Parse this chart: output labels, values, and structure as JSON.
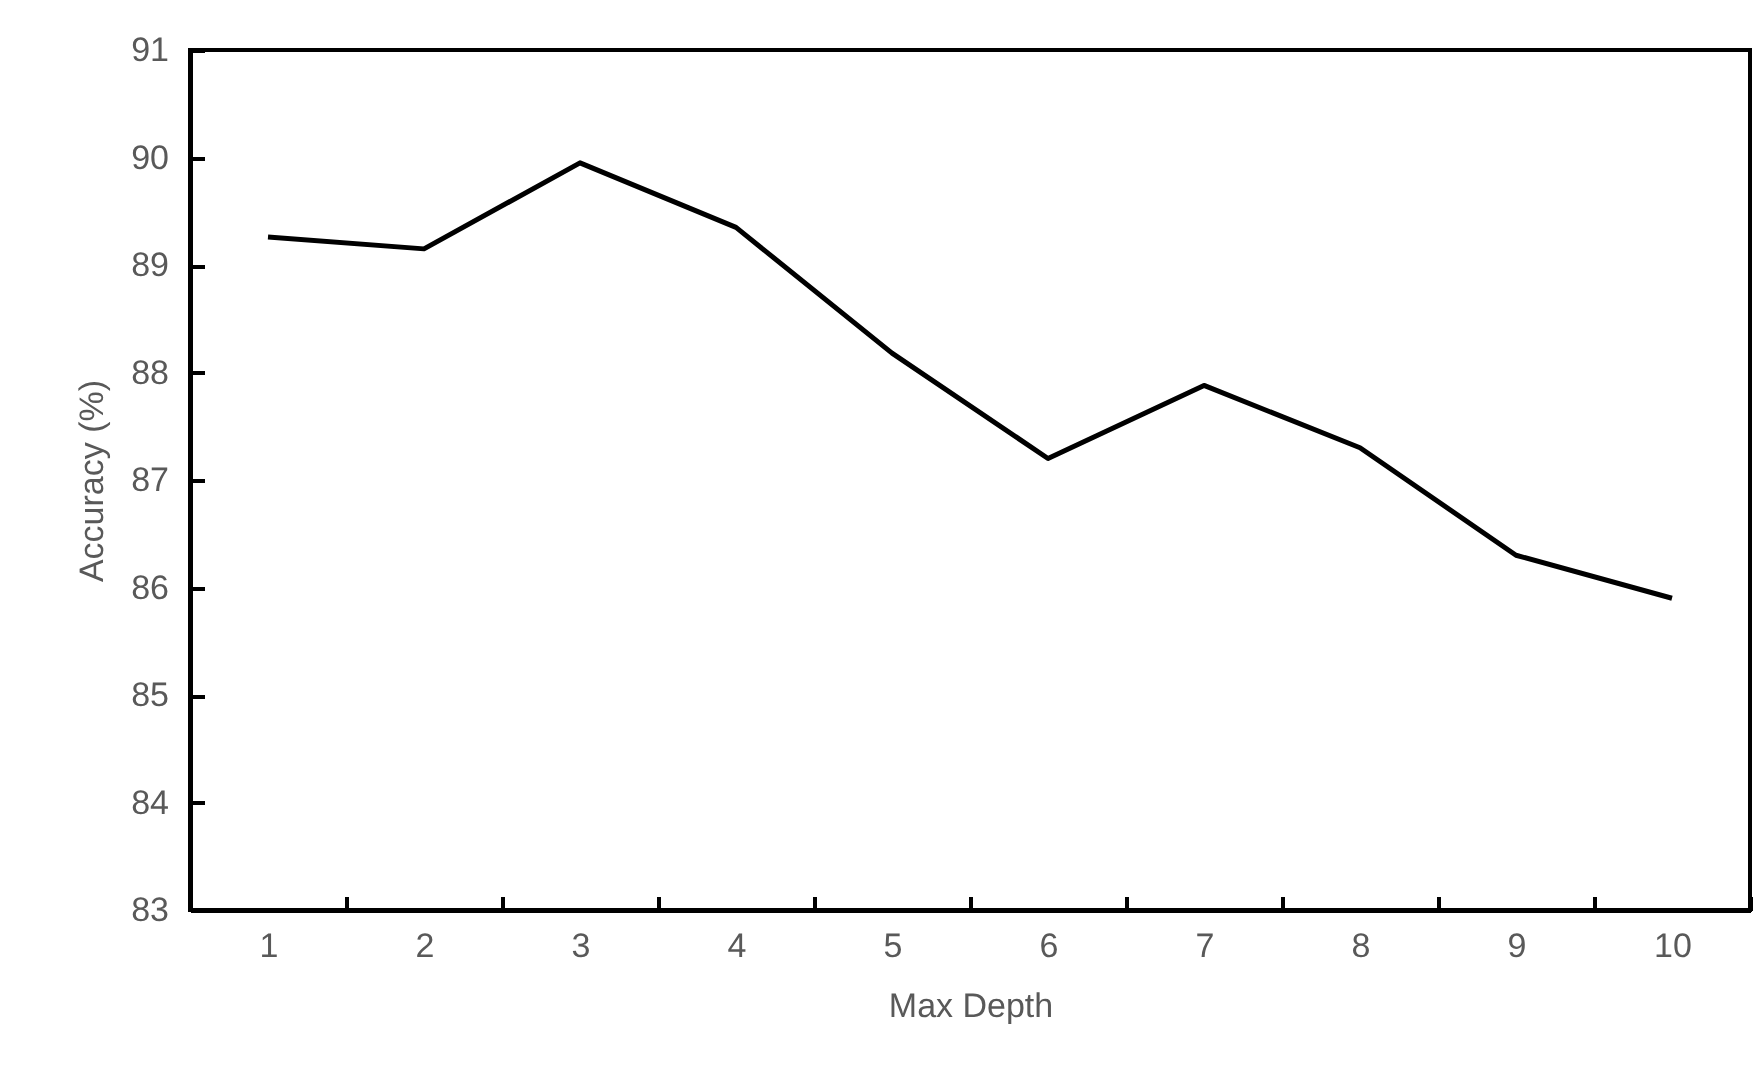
{
  "chart_data": {
    "type": "line",
    "xlabel": "Max Depth",
    "ylabel": "Accuracy (%)",
    "categories": [
      "1",
      "2",
      "3",
      "4",
      "5",
      "6",
      "7",
      "8",
      "9",
      "10"
    ],
    "series": [
      {
        "color": "#000000",
        "values": [
          89.26,
          89.15,
          89.95,
          89.35,
          88.18,
          87.2,
          87.88,
          87.3,
          86.3,
          85.9
        ]
      }
    ],
    "ylim": [
      83,
      91
    ],
    "yticks": [
      83,
      84,
      85,
      86,
      87,
      88,
      89,
      90,
      91
    ],
    "grid": false,
    "legend": false,
    "marker": "none",
    "line_style": "solid"
  }
}
